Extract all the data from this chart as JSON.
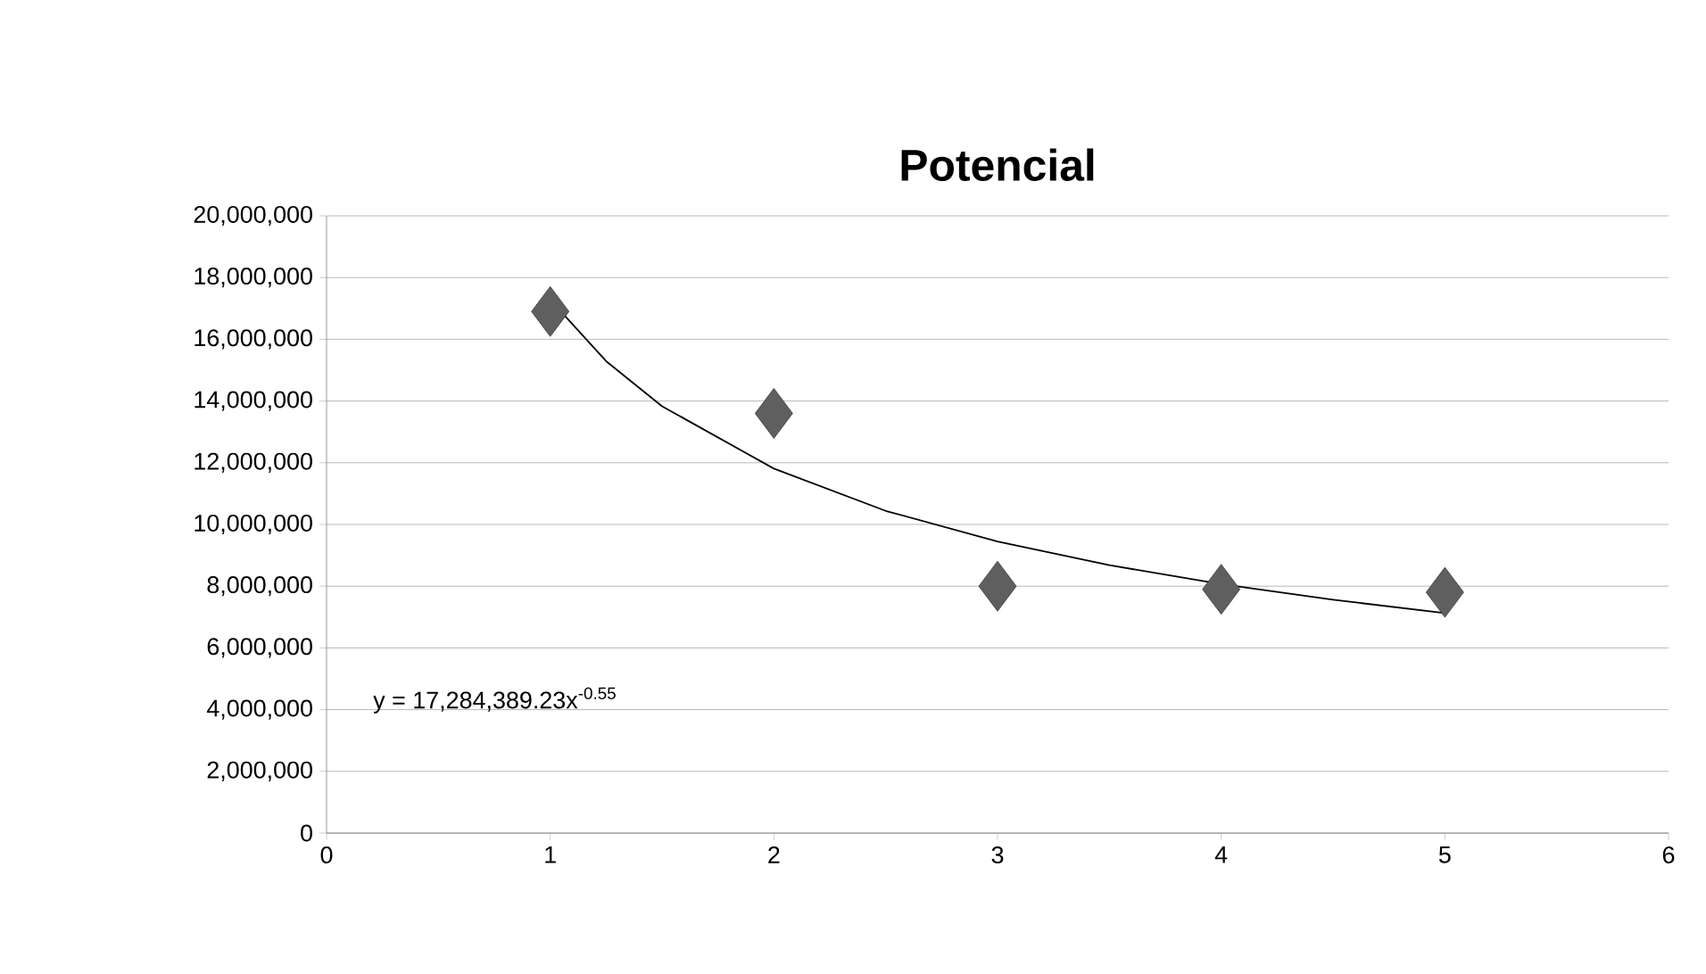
{
  "chart_data": {
    "type": "scatter",
    "title": "Potencial",
    "x": [
      1,
      2,
      3,
      4,
      5
    ],
    "series": [
      {
        "type": "scatter",
        "color": "#5f5f5f",
        "marker": "diamond",
        "values": [
          16900000,
          13600000,
          8000000,
          7900000,
          7800000
        ]
      },
      {
        "type": "line",
        "color": "#000000",
        "marker": "none",
        "line_style": "solid",
        "x": [
          1,
          1.25,
          1.5,
          2,
          2.5,
          3,
          3.5,
          4,
          4.5,
          5
        ],
        "values": [
          17280000,
          15290000,
          13830000,
          11810000,
          10440000,
          9450000,
          8680000,
          8070000,
          7560000,
          7130000
        ]
      }
    ],
    "xlim": [
      0,
      6
    ],
    "xticks": [
      0,
      1,
      2,
      3,
      4,
      5,
      6
    ],
    "ylim": [
      0,
      20000000
    ],
    "yticks": [
      {
        "value": 0,
        "label": "0"
      },
      {
        "value": 2000000,
        "label": "2,000,000"
      },
      {
        "value": 4000000,
        "label": "4,000,000"
      },
      {
        "value": 6000000,
        "label": "6,000,000"
      },
      {
        "value": 8000000,
        "label": "8,000,000"
      },
      {
        "value": 10000000,
        "label": "10,000,000"
      },
      {
        "value": 12000000,
        "label": "12,000,000"
      },
      {
        "value": 14000000,
        "label": "14,000,000"
      },
      {
        "value": 16000000,
        "label": "16,000,000"
      },
      {
        "value": 18000000,
        "label": "18,000,000"
      },
      {
        "value": 20000000,
        "label": "20,000,000"
      }
    ],
    "grid": "y",
    "legend": false,
    "annotations": [
      "y = 17,284,389.23x$^{-0.55}$"
    ]
  }
}
